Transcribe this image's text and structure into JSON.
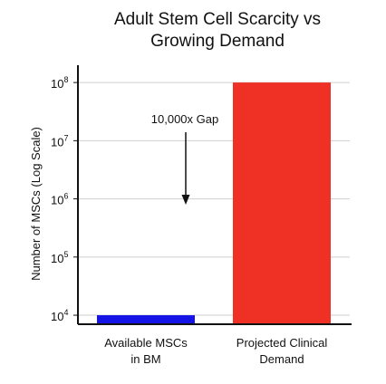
{
  "chart_data": {
    "type": "bar",
    "title_lines": [
      "Adult Stem Cell Scarcity vs",
      "Growing Demand"
    ],
    "categories": [
      [
        "Available MSCs",
        "in BM"
      ],
      [
        "Projected Clinical",
        "Demand"
      ]
    ],
    "values": [
      10000,
      100000000
    ],
    "colors": [
      "#1414e6",
      "#ee3124"
    ],
    "ylabel": "Number of MSCs (Log Scale)",
    "yscale": "log",
    "ylim": [
      7000,
      160000000
    ],
    "yticks": [
      {
        "base": "10",
        "exp": "4",
        "value": 10000
      },
      {
        "base": "10",
        "exp": "5",
        "value": 100000
      },
      {
        "base": "10",
        "exp": "6",
        "value": 1000000
      },
      {
        "base": "10",
        "exp": "7",
        "value": 10000000
      },
      {
        "base": "10",
        "exp": "8",
        "value": 100000000
      }
    ],
    "grid": true,
    "annotation": {
      "text": "10,000x Gap"
    }
  }
}
